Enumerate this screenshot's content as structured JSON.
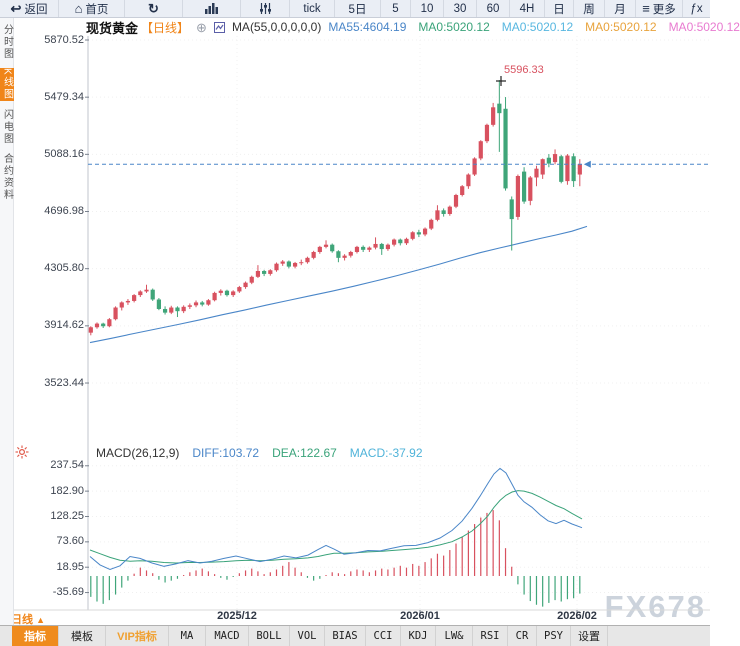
{
  "toolbar": {
    "items": [
      {
        "id": "back",
        "icon": "back-arrow-icon",
        "label": "返回",
        "w": 57
      },
      {
        "id": "home",
        "icon": "home-icon",
        "label": "首页",
        "w": 64
      },
      {
        "id": "refresh",
        "icon": "refresh-icon",
        "label": "",
        "w": 56
      },
      {
        "id": "chart-type",
        "icon": "bar-chart-icon",
        "label": "",
        "w": 56
      },
      {
        "id": "indicator-settings",
        "icon": "sliders-icon",
        "label": "",
        "w": 47
      },
      {
        "id": "tick",
        "icon": "",
        "label": "tick",
        "w": 43
      },
      {
        "id": "period-5d",
        "icon": "",
        "label": "5日",
        "w": 44
      },
      {
        "id": "period-5",
        "icon": "",
        "label": "5",
        "w": 28
      },
      {
        "id": "period-10",
        "icon": "",
        "label": "10",
        "w": 31
      },
      {
        "id": "period-30",
        "icon": "",
        "label": "30",
        "w": 31
      },
      {
        "id": "period-60",
        "icon": "",
        "label": "60",
        "w": 31
      },
      {
        "id": "period-4h",
        "icon": "",
        "label": "4H",
        "w": 33
      },
      {
        "id": "period-day",
        "icon": "",
        "label": "日",
        "w": 27
      },
      {
        "id": "period-week",
        "icon": "",
        "label": "周",
        "w": 29
      },
      {
        "id": "period-month",
        "icon": "",
        "label": "月",
        "w": 29
      },
      {
        "id": "more",
        "icon": "menu-icon",
        "label": "更多",
        "w": 45
      },
      {
        "id": "fx",
        "icon": "",
        "label": "ƒx",
        "w": 26
      }
    ]
  },
  "sidebar": {
    "items": [
      {
        "label": "分时图",
        "active": false
      },
      {
        "label": "K线图",
        "active": true
      },
      {
        "label": "闪电图",
        "active": false
      },
      {
        "label": "合约资料",
        "active": false
      }
    ]
  },
  "title": {
    "symbol": "现货黄金",
    "period": "【日线】",
    "ma_formula": "MA(55,0,0,0,0,0)",
    "ma_values": [
      {
        "label": "MA55:4604.19",
        "color": "#4a86c8"
      },
      {
        "label": "MA0:5020.12",
        "color": "#3aa37a"
      },
      {
        "label": "MA0:5020.12",
        "color": "#58b7e0"
      },
      {
        "label": "MA0:5020.12",
        "color": "#e8a33d"
      },
      {
        "label": "MA0:5020.12",
        "color": "#e87ad0"
      }
    ]
  },
  "macd_header": {
    "label": "MACD(26,12,9)",
    "diff": {
      "label": "DIFF:103.72",
      "color": "#4a86c8"
    },
    "dea": {
      "label": "DEA:122.67",
      "color": "#3aa37a"
    },
    "macd": {
      "label": "MACD:-37.92",
      "color": "#4fb3d9"
    }
  },
  "bottom": {
    "period_label": "日线",
    "period_arrow": "▲",
    "tabs": [
      {
        "label": "指标",
        "style": "active",
        "w": 46
      },
      {
        "label": "模板",
        "style": "normal",
        "w": 46
      },
      {
        "label": "VIP指标",
        "style": "vip",
        "w": 62
      },
      {
        "label": "MA",
        "style": "mono",
        "w": 36
      },
      {
        "label": "MACD",
        "style": "mono",
        "w": 42
      },
      {
        "label": "BOLL",
        "style": "mono",
        "w": 40
      },
      {
        "label": "VOL",
        "style": "mono",
        "w": 34
      },
      {
        "label": "BIAS",
        "style": "mono",
        "w": 40
      },
      {
        "label": "CCI",
        "style": "mono",
        "w": 34
      },
      {
        "label": "KDJ",
        "style": "mono",
        "w": 34
      },
      {
        "label": "LW&",
        "style": "mono",
        "w": 36
      },
      {
        "label": "RSI",
        "style": "mono",
        "w": 34
      },
      {
        "label": "CR",
        "style": "mono",
        "w": 28
      },
      {
        "label": "PSY",
        "style": "mono",
        "w": 33
      },
      {
        "label": "设置",
        "style": "normal",
        "w": 36
      }
    ]
  },
  "watermark": "FX678",
  "colors": {
    "up": "#d8515f",
    "down": "#3fa579",
    "ma55": "#4a86c8",
    "diff": "#4a86c8",
    "dea": "#3aa37a",
    "dashed_price_line": "#4a86c8",
    "accent_orange": "#f08519",
    "axis_text": "#3d4450"
  },
  "chart_data": {
    "type": "candlestick",
    "title": "现货黄金 日线 (Spot Gold Daily)",
    "price_axis_ticks": [
      "5870.52",
      "5479.34",
      "5088.16",
      "4696.98",
      "4305.80",
      "3914.62",
      "3523.44"
    ],
    "macd_axis_ticks": [
      "237.54",
      "182.90",
      "128.25",
      "73.60",
      "18.95",
      "-35.69"
    ],
    "x_labels": [
      "2025/12",
      "2026/01",
      "2026/02"
    ],
    "current_price": 5020.12,
    "high_annotation": "5596.33",
    "legend": [
      "MA55",
      "DIFF",
      "DEA",
      "MACD"
    ],
    "candles": [
      [
        3868,
        3912,
        3850,
        3905
      ],
      [
        3905,
        3938,
        3895,
        3930
      ],
      [
        3930,
        3936,
        3900,
        3912
      ],
      [
        3912,
        3968,
        3905,
        3960
      ],
      [
        3960,
        4048,
        3952,
        4040
      ],
      [
        4040,
        4082,
        4020,
        4075
      ],
      [
        4075,
        4098,
        4058,
        4085
      ],
      [
        4085,
        4132,
        4075,
        4125
      ],
      [
        4125,
        4158,
        4112,
        4150
      ],
      [
        4150,
        4196,
        4140,
        4162
      ],
      [
        4162,
        4170,
        4085,
        4095
      ],
      [
        4095,
        4105,
        4022,
        4030
      ],
      [
        4030,
        4048,
        3992,
        4005
      ],
      [
        4005,
        4052,
        3995,
        4040
      ],
      [
        4040,
        4048,
        3975,
        4015
      ],
      [
        4015,
        4055,
        4002,
        4045
      ],
      [
        4045,
        4068,
        4030,
        4055
      ],
      [
        4055,
        4088,
        4042,
        4075
      ],
      [
        4075,
        4085,
        4048,
        4060
      ],
      [
        4060,
        4098,
        4052,
        4090
      ],
      [
        4090,
        4148,
        4082,
        4140
      ],
      [
        4140,
        4165,
        4122,
        4155
      ],
      [
        4155,
        4162,
        4115,
        4125
      ],
      [
        4125,
        4158,
        4112,
        4150
      ],
      [
        4150,
        4188,
        4140,
        4180
      ],
      [
        4180,
        4218,
        4168,
        4210
      ],
      [
        4210,
        4258,
        4200,
        4250
      ],
      [
        4250,
        4330,
        4242,
        4290
      ],
      [
        4290,
        4298,
        4255,
        4270
      ],
      [
        4270,
        4302,
        4258,
        4295
      ],
      [
        4295,
        4348,
        4285,
        4340
      ],
      [
        4340,
        4365,
        4325,
        4355
      ],
      [
        4355,
        4362,
        4308,
        4320
      ],
      [
        4320,
        4352,
        4308,
        4345
      ],
      [
        4345,
        4368,
        4330,
        4350
      ],
      [
        4350,
        4388,
        4340,
        4380
      ],
      [
        4380,
        4428,
        4370,
        4420
      ],
      [
        4420,
        4462,
        4408,
        4455
      ],
      [
        4455,
        4500,
        4445,
        4470
      ],
      [
        4470,
        4478,
        4415,
        4425
      ],
      [
        4425,
        4432,
        4350,
        4380
      ],
      [
        4380,
        4405,
        4362,
        4395
      ],
      [
        4395,
        4428,
        4382,
        4420
      ],
      [
        4420,
        4462,
        4410,
        4455
      ],
      [
        4455,
        4465,
        4420,
        4435
      ],
      [
        4435,
        4458,
        4420,
        4450
      ],
      [
        4450,
        4520,
        4438,
        4475
      ],
      [
        4475,
        4482,
        4400,
        4440
      ],
      [
        4440,
        4478,
        4428,
        4470
      ],
      [
        4470,
        4512,
        4458,
        4505
      ],
      [
        4505,
        4512,
        4465,
        4480
      ],
      [
        4480,
        4518,
        4468,
        4510
      ],
      [
        4510,
        4562,
        4500,
        4555
      ],
      [
        4555,
        4572,
        4522,
        4540
      ],
      [
        4540,
        4588,
        4528,
        4580
      ],
      [
        4580,
        4648,
        4570,
        4640
      ],
      [
        4640,
        4740,
        4630,
        4705
      ],
      [
        4705,
        4718,
        4662,
        4680
      ],
      [
        4680,
        4738,
        4668,
        4730
      ],
      [
        4730,
        4818,
        4720,
        4810
      ],
      [
        4810,
        4878,
        4800,
        4870
      ],
      [
        4870,
        4958,
        4852,
        4950
      ],
      [
        4950,
        5068,
        4940,
        5060
      ],
      [
        5060,
        5185,
        5048,
        5178
      ],
      [
        5178,
        5298,
        5165,
        5290
      ],
      [
        5290,
        5440,
        5278,
        5410
      ],
      [
        5435,
        5596.33,
        5105,
        5370
      ],
      [
        5400,
        5480,
        4840,
        4855
      ],
      [
        4780,
        4800,
        4430,
        4645
      ],
      [
        4660,
        4950,
        4640,
        4940
      ],
      [
        4970,
        5000,
        4750,
        4765
      ],
      [
        4770,
        4940,
        4740,
        4930
      ],
      [
        4930,
        5010,
        4870,
        4990
      ],
      [
        4950,
        5060,
        4920,
        5055
      ],
      [
        5065,
        5090,
        5000,
        5025
      ],
      [
        5035,
        5122,
        5020,
        5090
      ],
      [
        5075,
        5085,
        4890,
        4900
      ],
      [
        4905,
        5090,
        4880,
        5080
      ],
      [
        5075,
        5095,
        4865,
        4905
      ],
      [
        4950,
        5055,
        4870,
        5020.12
      ]
    ],
    "ma55": [
      [
        90,
        3800
      ],
      [
        112,
        3830
      ],
      [
        134,
        3862
      ],
      [
        156,
        3893
      ],
      [
        178,
        3924
      ],
      [
        200,
        3956
      ],
      [
        222,
        3990
      ],
      [
        244,
        4022
      ],
      [
        266,
        4056
      ],
      [
        288,
        4088
      ],
      [
        310,
        4120
      ],
      [
        332,
        4152
      ],
      [
        354,
        4186
      ],
      [
        376,
        4222
      ],
      [
        398,
        4260
      ],
      [
        420,
        4300
      ],
      [
        440,
        4338
      ],
      [
        460,
        4378
      ],
      [
        480,
        4415
      ],
      [
        500,
        4448
      ],
      [
        520,
        4480
      ],
      [
        540,
        4512
      ],
      [
        556,
        4536
      ],
      [
        572,
        4562
      ],
      [
        587,
        4595
      ]
    ],
    "macd": {
      "diff": [
        [
          90,
          42
        ],
        [
          100,
          24
        ],
        [
          110,
          14
        ],
        [
          120,
          22
        ],
        [
          130,
          42
        ],
        [
          140,
          38
        ],
        [
          152,
          28
        ],
        [
          164,
          21
        ],
        [
          176,
          26
        ],
        [
          188,
          33
        ],
        [
          200,
          28
        ],
        [
          212,
          32
        ],
        [
          224,
          38
        ],
        [
          236,
          43
        ],
        [
          248,
          37
        ],
        [
          260,
          31
        ],
        [
          272,
          36
        ],
        [
          284,
          43
        ],
        [
          296,
          39
        ],
        [
          308,
          45
        ],
        [
          318,
          57
        ],
        [
          326,
          66
        ],
        [
          334,
          58
        ],
        [
          344,
          47
        ],
        [
          356,
          50
        ],
        [
          368,
          55
        ],
        [
          380,
          54
        ],
        [
          392,
          60
        ],
        [
          404,
          65
        ],
        [
          416,
          66
        ],
        [
          428,
          72
        ],
        [
          440,
          82
        ],
        [
          452,
          98
        ],
        [
          462,
          118
        ],
        [
          472,
          146
        ],
        [
          480,
          172
        ],
        [
          488,
          200
        ],
        [
          494,
          220
        ],
        [
          500,
          232
        ],
        [
          506,
          222
        ],
        [
          512,
          198
        ],
        [
          518,
          174
        ],
        [
          524,
          160
        ],
        [
          532,
          148
        ],
        [
          540,
          132
        ],
        [
          548,
          119
        ],
        [
          556,
          113
        ],
        [
          564,
          120
        ],
        [
          572,
          112
        ],
        [
          582,
          104
        ]
      ],
      "dea": [
        [
          90,
          56
        ],
        [
          100,
          48
        ],
        [
          110,
          40
        ],
        [
          120,
          34
        ],
        [
          130,
          32
        ],
        [
          140,
          33
        ],
        [
          152,
          32
        ],
        [
          164,
          29
        ],
        [
          176,
          28
        ],
        [
          188,
          29
        ],
        [
          200,
          29
        ],
        [
          212,
          30
        ],
        [
          224,
          31
        ],
        [
          236,
          33
        ],
        [
          248,
          34
        ],
        [
          260,
          33
        ],
        [
          272,
          34
        ],
        [
          284,
          36
        ],
        [
          296,
          37
        ],
        [
          308,
          39
        ],
        [
          318,
          42
        ],
        [
          326,
          46
        ],
        [
          334,
          49
        ],
        [
          344,
          49
        ],
        [
          356,
          50
        ],
        [
          368,
          52
        ],
        [
          380,
          53
        ],
        [
          392,
          55
        ],
        [
          404,
          57
        ],
        [
          416,
          59
        ],
        [
          428,
          62
        ],
        [
          440,
          67
        ],
        [
          452,
          74
        ],
        [
          462,
          84
        ],
        [
          472,
          97
        ],
        [
          480,
          112
        ],
        [
          488,
          130
        ],
        [
          494,
          148
        ],
        [
          500,
          163
        ],
        [
          506,
          174
        ],
        [
          512,
          181
        ],
        [
          518,
          184
        ],
        [
          524,
          183
        ],
        [
          532,
          178
        ],
        [
          540,
          170
        ],
        [
          548,
          161
        ],
        [
          556,
          152
        ],
        [
          564,
          145
        ],
        [
          572,
          135
        ],
        [
          582,
          123
        ]
      ],
      "histogram": [
        -45,
        -55,
        -60,
        -52,
        -40,
        -25,
        -10,
        5,
        18,
        12,
        6,
        -8,
        -14,
        -10,
        -6,
        2,
        8,
        12,
        16,
        10,
        4,
        -4,
        -8,
        -2,
        6,
        12,
        16,
        10,
        4,
        8,
        14,
        22,
        30,
        18,
        8,
        -4,
        -10,
        -6,
        2,
        8,
        6,
        4,
        10,
        14,
        12,
        8,
        12,
        16,
        14,
        18,
        22,
        18,
        26,
        22,
        30,
        38,
        48,
        44,
        56,
        70,
        84,
        98,
        112,
        126,
        136,
        142,
        120,
        60,
        20,
        -18,
        -40,
        -54,
        -62,
        -66,
        -58,
        -52,
        -55,
        -50,
        -48,
        -37.92
      ]
    }
  }
}
